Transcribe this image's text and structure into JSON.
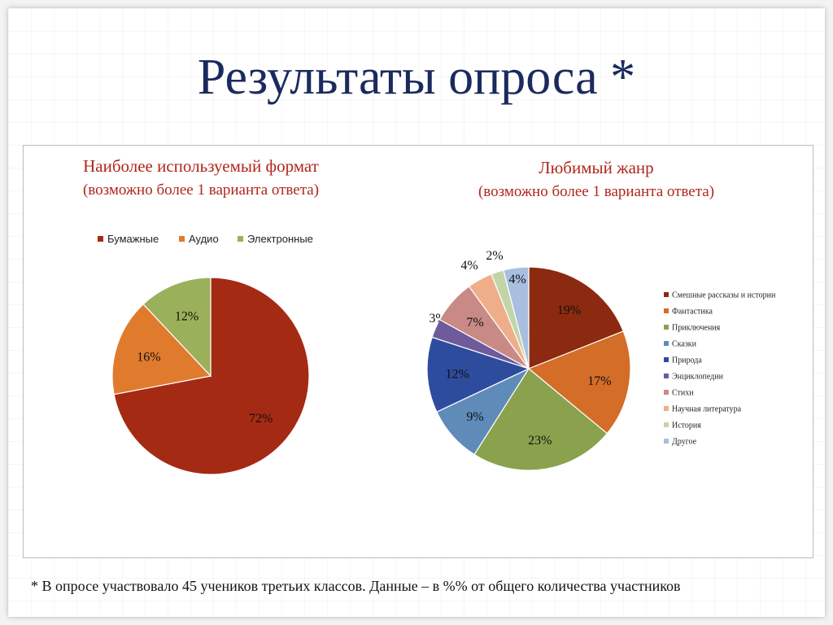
{
  "title": "Результаты опроса *",
  "footnote": "* В опросе участвовало 45 учеников третьих классов. Данные – в %% от общего количества участников",
  "chart_data": [
    {
      "type": "pie",
      "title": "Наиболее используемый формат",
      "subtitle": "(возможно более 1 варианта ответа)",
      "legend_position": "top",
      "labels": [
        "Бумажные",
        "Аудио",
        "Электронные"
      ],
      "values": [
        72,
        16,
        12
      ],
      "value_labels": [
        "72%",
        "16%",
        "12%"
      ],
      "colors": [
        "#a52a14",
        "#e07b2e",
        "#9bb05a"
      ]
    },
    {
      "type": "pie",
      "title": "Любимый жанр",
      "subtitle": "(возможно более 1 варианта ответа)",
      "legend_position": "right",
      "labels": [
        "Смешные рассказы и истории",
        "Фантастика",
        "Приключения",
        "Сказки",
        "Природа",
        "Энциклопедии",
        "Стихи",
        "Научная литература",
        "История",
        "Другое"
      ],
      "values": [
        19,
        17,
        23,
        9,
        12,
        3,
        7,
        4,
        2,
        4
      ],
      "value_labels": [
        "19%",
        "17%",
        "23%",
        "9%",
        "12%",
        "3%",
        "7%",
        "4%",
        "2%",
        "4%"
      ],
      "colors": [
        "#8b2a10",
        "#d36d28",
        "#8aa24d",
        "#5f8bb8",
        "#2e4c9e",
        "#6f5a9b",
        "#c98a85",
        "#efae8a",
        "#c2d5a7",
        "#a8bfe0"
      ]
    }
  ]
}
